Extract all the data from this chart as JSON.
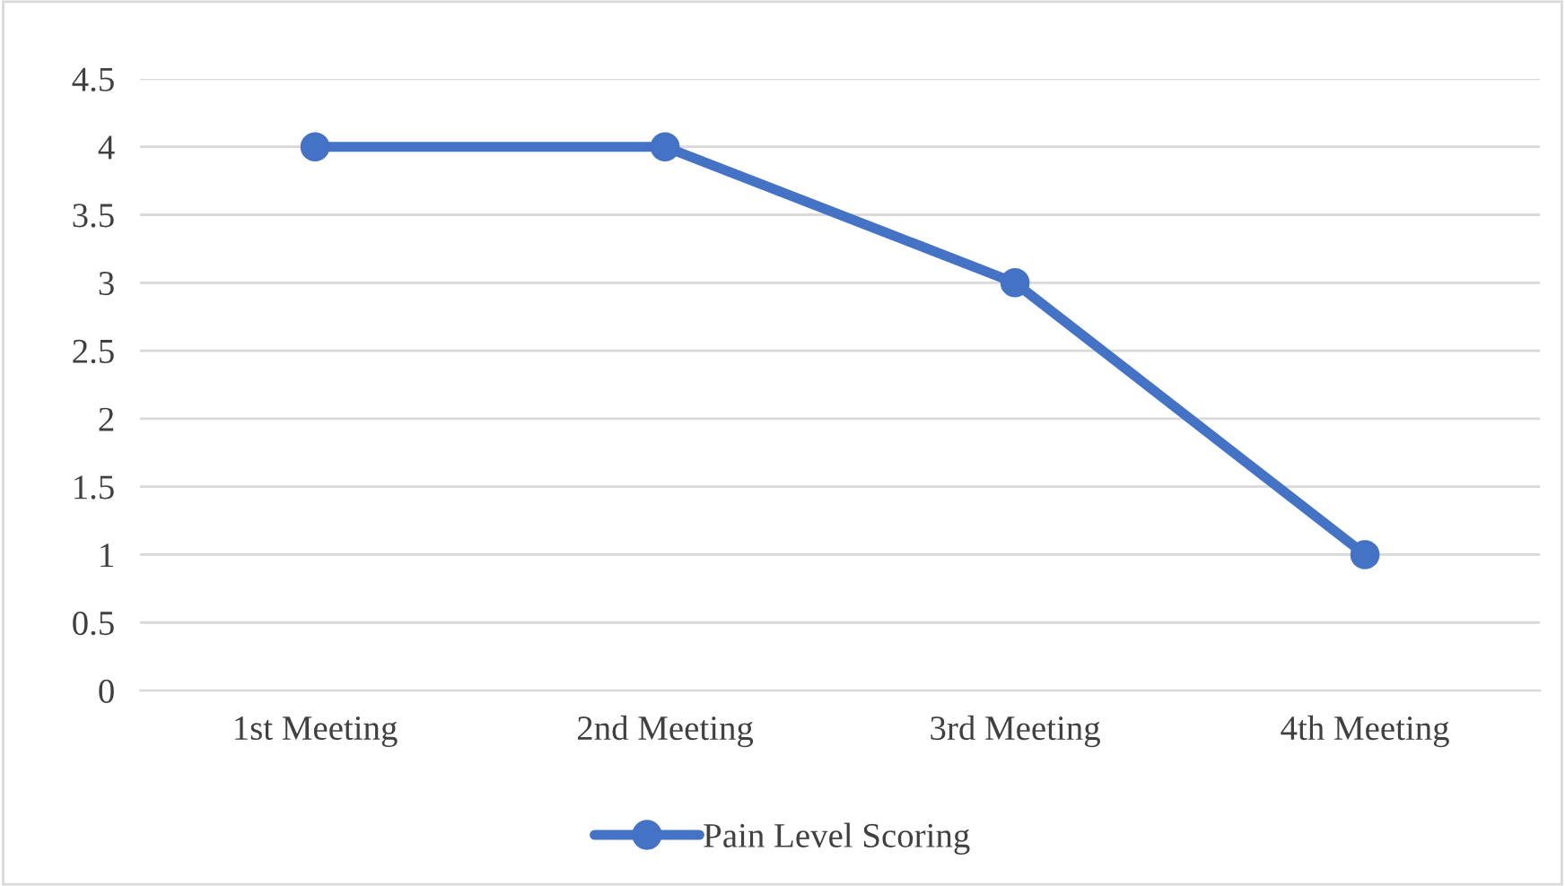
{
  "chart_data": {
    "type": "line",
    "categories": [
      "1st Meeting",
      "2nd Meeting",
      "3rd Meeting",
      "4th Meeting"
    ],
    "series": [
      {
        "name": "Pain Level Scoring",
        "color": "#4472c4",
        "values": [
          4,
          4,
          3,
          1
        ]
      }
    ],
    "ylim": [
      0,
      4.5
    ],
    "yticks": [
      0,
      0.5,
      1,
      1.5,
      2,
      2.5,
      3,
      3.5,
      4,
      4.5
    ],
    "grid": "y",
    "legend": "bottom",
    "marker": "circle",
    "line_style": "solid"
  }
}
